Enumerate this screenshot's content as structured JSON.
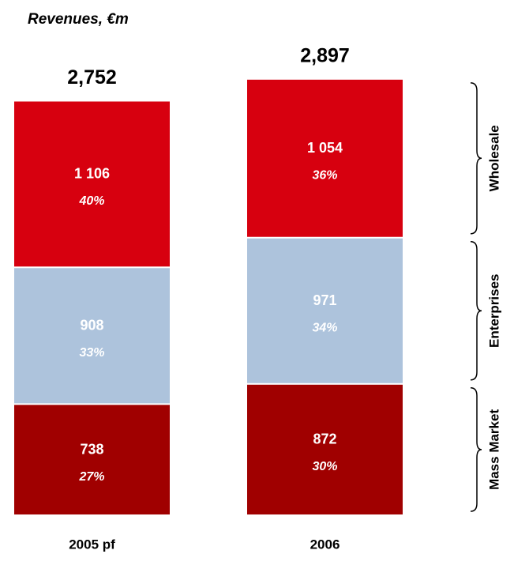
{
  "chart_data": {
    "type": "stacked-bar",
    "title": "Revenues, €m",
    "categories": [
      "2005 pf",
      "2006"
    ],
    "totals": [
      2752,
      2897
    ],
    "total_labels": [
      "2,752",
      "2,897"
    ],
    "series": [
      {
        "name": "Mass Market",
        "color": "#a00000",
        "values": [
          738,
          872
        ],
        "value_labels": [
          "738",
          "872"
        ],
        "share_labels": [
          "27%",
          "30%"
        ]
      },
      {
        "name": "Enterprises",
        "color": "#adc3dc",
        "values": [
          908,
          971
        ],
        "value_labels": [
          "908",
          "971"
        ],
        "share_labels": [
          "33%",
          "34%"
        ]
      },
      {
        "name": "Wholesale",
        "color": "#d7000f",
        "values": [
          1106,
          1054
        ],
        "value_labels": [
          "1 106",
          "1 054"
        ],
        "share_labels": [
          "40%",
          "36%"
        ]
      }
    ]
  }
}
